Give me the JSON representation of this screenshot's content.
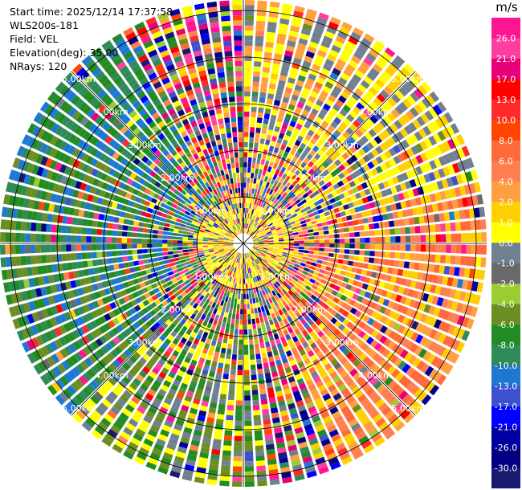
{
  "header": {
    "start_time": "Start time: 2025/12/14 17:37:58",
    "instrument": "WLS200s-181",
    "field": "Field: VEL",
    "elevation": "Elevation(deg): 35.00",
    "nrays": "NRays: 120"
  },
  "colorbar": {
    "unit": "m/s",
    "ticks": [
      "26.0",
      "21.0",
      "17.0",
      "13.0",
      "10.0",
      "8.0",
      "6.0",
      "4.0",
      "2.0",
      "1.0",
      "0.0",
      "-1.0",
      "-2.0",
      "-4.0",
      "-6.0",
      "-8.0",
      "-10.0",
      "-13.0",
      "-17.0",
      "-21.0",
      "-26.0",
      "-30.0"
    ],
    "colors": [
      "#ff1493",
      "#ff3fa0",
      "#e6007a",
      "#ff0000",
      "#ff2a2a",
      "#ff4500",
      "#ff6a3a",
      "#ff7f50",
      "#ff9f40",
      "#ffd000",
      "#ffff00",
      "#708090",
      "#696969",
      "#9acd32",
      "#6b8e23",
      "#228b22",
      "#2e8b57",
      "#1e78d2",
      "#3c50d0",
      "#0000ff",
      "#0000a0",
      "#000080",
      "#191970"
    ]
  },
  "chart_data": {
    "type": "ppi",
    "field": "VEL",
    "unit": "m/s",
    "elevation_deg": 35.0,
    "nrays": 120,
    "range_ring_labels_km": [
      "1.00km",
      "2.00km",
      "3.00km",
      "4.00km",
      "5.00km"
    ],
    "range_rings_km": [
      1,
      2,
      3,
      4,
      5
    ],
    "max_range_km": 5.5,
    "value_range": [
      -30,
      26
    ]
  }
}
